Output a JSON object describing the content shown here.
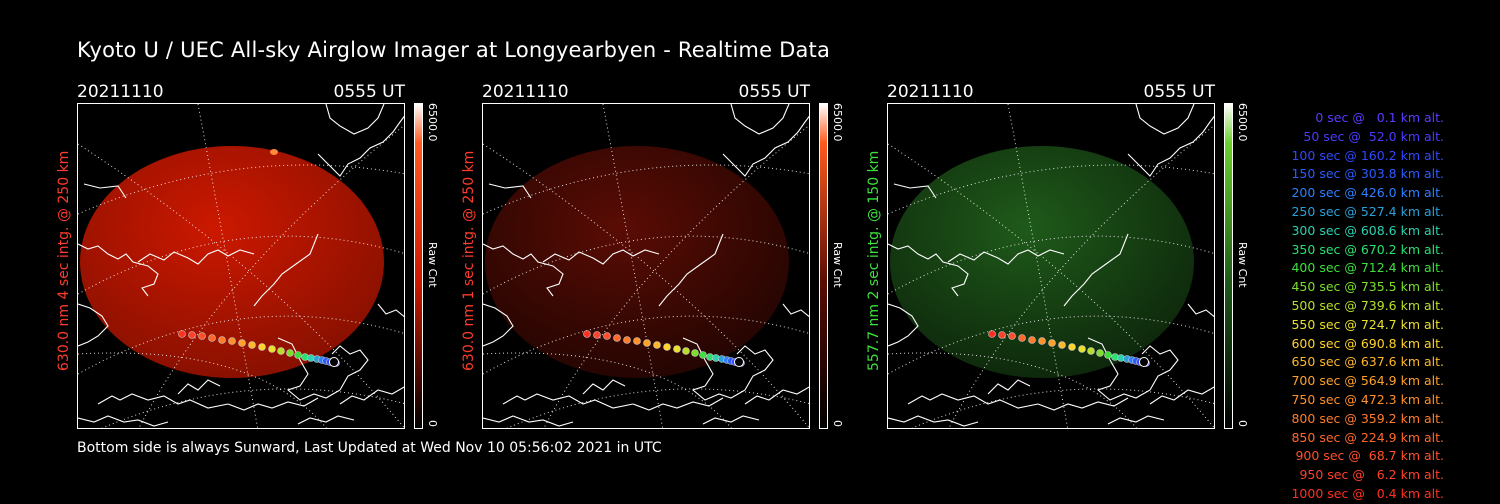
{
  "title": "Kyoto U / UEC All-sky Airglow Imager at Longyearbyen - Realtime Data",
  "panels": [
    {
      "date": "20211110",
      "time": "0555 UT",
      "side_label": "630.0 nm 4 sec intg. @ 250 km",
      "label_color": "#ff3b2b",
      "colorbar_max": "6500.0",
      "colorbar_min": "0",
      "colorbar_label": "Raw Cnt",
      "tint": "#cc1800",
      "intensity": 0.9,
      "colorbar_end": "#ff5a1e"
    },
    {
      "date": "20211110",
      "time": "0555 UT",
      "side_label": "630.0 nm 1 sec intg. @ 250 km",
      "label_color": "#ff3b2b",
      "colorbar_max": "6500.0",
      "colorbar_min": "0",
      "colorbar_label": "Raw Cnt",
      "tint": "#5a0c04",
      "intensity": 0.55,
      "colorbar_end": "#ff5a1e"
    },
    {
      "date": "20211110",
      "time": "0555 UT",
      "side_label": "557.7 nm 2 sec intg. @ 150 km",
      "label_color": "#3ce13c",
      "colorbar_max": "6500.0",
      "colorbar_min": "0",
      "colorbar_label": "Raw Cnt",
      "tint": "#1f5a1a",
      "intensity": 0.6,
      "colorbar_end": "#6cd02a"
    }
  ],
  "footer": "Bottom side is always Sunward, Last Updated at Wed Nov 10 05:56:02 2021 in UTC",
  "legend": [
    {
      "text": "0 sec @   0.1 km alt.",
      "color": "#5a3cff"
    },
    {
      "text": "50 sec @  52.0 km alt.",
      "color": "#4a3cff"
    },
    {
      "text": "100 sec @ 160.2 km alt.",
      "color": "#3048ff"
    },
    {
      "text": "150 sec @ 303.8 km alt.",
      "color": "#2b5cff"
    },
    {
      "text": "200 sec @ 426.0 km alt.",
      "color": "#2b80ff"
    },
    {
      "text": "250 sec @ 527.4 km alt.",
      "color": "#2ba0d8"
    },
    {
      "text": "300 sec @ 608.6 km alt.",
      "color": "#2bd0b0"
    },
    {
      "text": "350 sec @ 670.2 km alt.",
      "color": "#2be070"
    },
    {
      "text": "400 sec @ 712.4 km alt.",
      "color": "#3ce03c"
    },
    {
      "text": "450 sec @ 735.5 km alt.",
      "color": "#7ae02b"
    },
    {
      "text": "500 sec @ 739.6 km alt.",
      "color": "#b8e02b"
    },
    {
      "text": "550 sec @ 724.7 km alt.",
      "color": "#e8e02b"
    },
    {
      "text": "600 sec @ 690.8 km alt.",
      "color": "#ffd42b"
    },
    {
      "text": "650 sec @ 637.6 km alt.",
      "color": "#ffb82b"
    },
    {
      "text": "700 sec @ 564.9 km alt.",
      "color": "#ffa02b"
    },
    {
      "text": "750 sec @ 472.3 km alt.",
      "color": "#ff902b"
    },
    {
      "text": "800 sec @ 359.2 km alt.",
      "color": "#ff7c2b"
    },
    {
      "text": "850 sec @ 224.9 km alt.",
      "color": "#ff682b"
    },
    {
      "text": "900 sec @  68.7 km alt.",
      "color": "#ff502b"
    },
    {
      "text": "950 sec @   6.2 km alt.",
      "color": "#ff402b"
    },
    {
      "text": "1000 sec @   0.4 km alt.",
      "color": "#ff3020"
    }
  ]
}
